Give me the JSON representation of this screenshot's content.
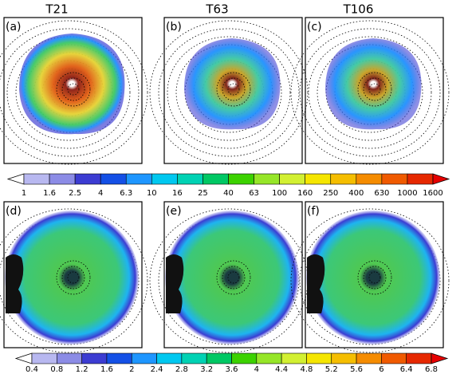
{
  "columns": [
    "T21",
    "T63",
    "T106"
  ],
  "panels": [
    "(a)",
    "(b)",
    "(c)",
    "(d)",
    "(e)",
    "(f)"
  ],
  "colorbars": [
    {
      "ticks": [
        "1",
        "1.6",
        "2.5",
        "4",
        "6.3",
        "10",
        "16",
        "25",
        "40",
        "63",
        "100",
        "160",
        "250",
        "400",
        "630",
        "1000",
        "1600"
      ],
      "colors": [
        "#ffffff",
        "#b8b8f0",
        "#8c8ce6",
        "#3c3cd2",
        "#1450e6",
        "#1e96ff",
        "#00c8f0",
        "#00d2b4",
        "#00c864",
        "#3cd200",
        "#96e628",
        "#d2f032",
        "#f5e600",
        "#f5be00",
        "#f58c00",
        "#f05a00",
        "#e62800",
        "#e60000"
      ]
    },
    {
      "ticks": [
        "0.4",
        "0.8",
        "1.2",
        "1.6",
        "2",
        "2.4",
        "2.8",
        "3.2",
        "3.6",
        "4",
        "4.4",
        "4.8",
        "5.2",
        "5.6",
        "6",
        "6.4",
        "6.8"
      ],
      "colors": [
        "#ffffff",
        "#b8b8f0",
        "#8c8ce6",
        "#3c3cd2",
        "#1450e6",
        "#1e96ff",
        "#00c8f0",
        "#00d2b4",
        "#00c864",
        "#3cd200",
        "#96e628",
        "#d2f032",
        "#f5e600",
        "#f5be00",
        "#f58c00",
        "#f05a00",
        "#e62800",
        "#e60000"
      ]
    }
  ]
}
